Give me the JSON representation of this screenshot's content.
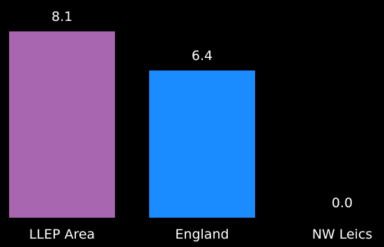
{
  "chart_data": {
    "type": "bar",
    "categories": [
      "LLEP Area",
      "England",
      "NW Leics"
    ],
    "values": [
      8.1,
      6.4,
      0.0
    ],
    "data_labels": [
      "8.1",
      "6.4",
      "0.0"
    ],
    "colors": [
      "#a865b0",
      "#1a8cff",
      "#1a8cff"
    ],
    "ylim": [
      0,
      8.1
    ],
    "grid": false,
    "legend": "none",
    "background": "#000000",
    "text_color": "#ffffff"
  }
}
